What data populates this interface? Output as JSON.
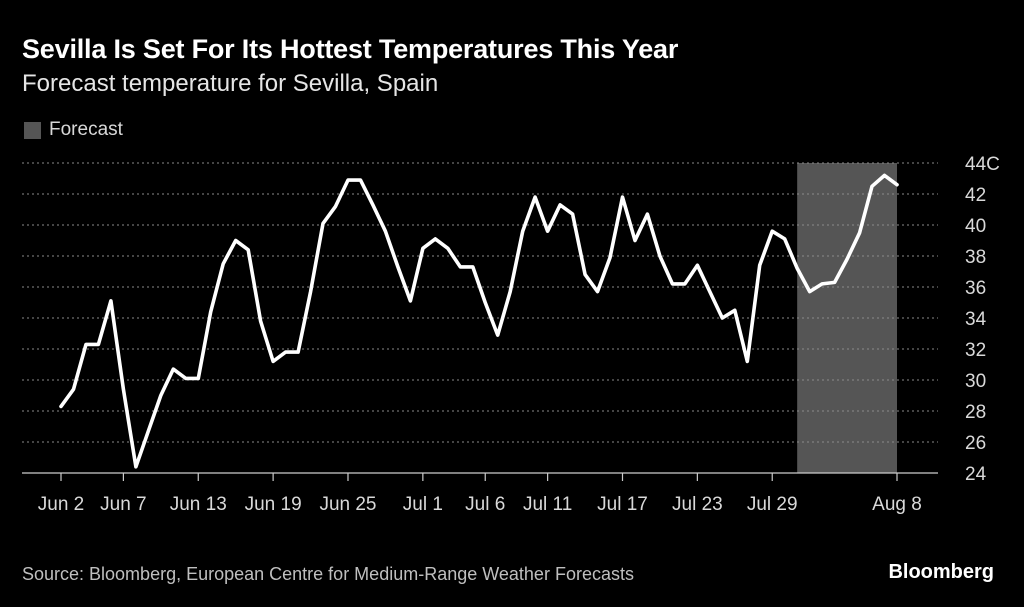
{
  "chart_data": {
    "type": "line",
    "title": "Sevilla Is Set For Its Hottest Temperatures This Year",
    "subtitle": "Forecast temperature for Sevilla, Spain",
    "legend": [
      {
        "label": "Forecast",
        "color": "#555555"
      }
    ],
    "ylabel": "",
    "y_unit": "C",
    "ylim": [
      24,
      44
    ],
    "yticks": [
      24,
      26,
      28,
      30,
      32,
      34,
      36,
      38,
      40,
      42,
      44
    ],
    "ytick_labels": [
      "24",
      "26",
      "28",
      "30",
      "32",
      "34",
      "36",
      "38",
      "40",
      "42",
      "44C"
    ],
    "xlim": [
      0,
      67
    ],
    "xticks": [
      {
        "day": 0,
        "label": "Jun 2"
      },
      {
        "day": 5,
        "label": "Jun 7"
      },
      {
        "day": 11,
        "label": "Jun 13"
      },
      {
        "day": 17,
        "label": "Jun 19"
      },
      {
        "day": 23,
        "label": "Jun 25"
      },
      {
        "day": 29,
        "label": "Jul 1"
      },
      {
        "day": 34,
        "label": "Jul 6"
      },
      {
        "day": 39,
        "label": "Jul 11"
      },
      {
        "day": 45,
        "label": "Jul 17"
      },
      {
        "day": 51,
        "label": "Jul 23"
      },
      {
        "day": 57,
        "label": "Jul 29"
      },
      {
        "day": 67,
        "label": "Aug 8"
      }
    ],
    "forecast_range": [
      59,
      67
    ],
    "series": [
      {
        "name": "Temperature",
        "x": [
          0,
          1,
          2,
          3,
          4,
          5,
          6,
          7,
          8,
          9,
          10,
          11,
          12,
          13,
          14,
          15,
          16,
          17,
          18,
          19,
          20,
          21,
          22,
          23,
          24,
          25,
          26,
          27,
          28,
          29,
          30,
          31,
          32,
          33,
          34,
          35,
          36,
          37,
          38,
          39,
          40,
          41,
          42,
          43,
          44,
          45,
          46,
          47,
          48,
          49,
          50,
          51,
          52,
          53,
          54,
          55,
          56,
          57,
          58,
          59,
          60,
          61,
          62,
          63,
          64,
          65,
          66,
          67
        ],
        "values": [
          28.3,
          29.4,
          32.3,
          32.3,
          35.1,
          29.4,
          24.4,
          26.7,
          29.0,
          30.7,
          30.1,
          30.1,
          34.4,
          37.5,
          39.0,
          38.4,
          33.8,
          31.2,
          31.8,
          31.8,
          35.7,
          40.1,
          41.2,
          42.9,
          42.9,
          41.3,
          39.6,
          37.3,
          35.1,
          38.5,
          39.1,
          38.5,
          37.3,
          37.3,
          35.0,
          32.9,
          35.7,
          39.6,
          41.8,
          39.6,
          41.3,
          40.7,
          36.8,
          35.7,
          37.9,
          41.8,
          39.0,
          40.7,
          38.0,
          36.2,
          36.2,
          37.4,
          35.7,
          34.0,
          34.5,
          31.2,
          37.4,
          39.6,
          39.1,
          37.2,
          35.7,
          36.2,
          36.3,
          37.8,
          39.5,
          42.5,
          43.2,
          42.6
        ],
        "color": "#ffffff"
      }
    ]
  },
  "footer": {
    "source": "Source: Bloomberg, European Centre for Medium-Range Weather Forecasts",
    "brand": "Bloomberg"
  }
}
